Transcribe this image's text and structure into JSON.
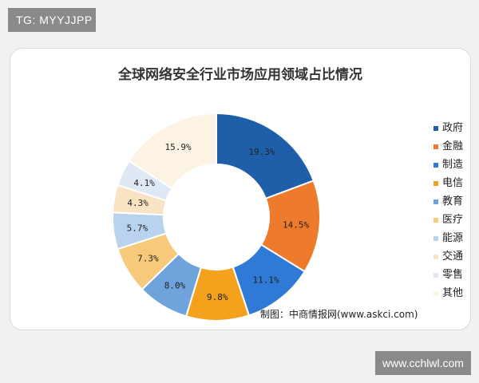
{
  "overlay": {
    "tg_label": "TG: MYYJJPP",
    "site_label": "www.cchlwl.com"
  },
  "chart_data": {
    "type": "pie",
    "donut": true,
    "title": "全球网络安全行业市场应用领域占比情况",
    "source": "制图：中商情报网(www.askci.com)",
    "legend_position": "right",
    "slices": [
      {
        "label": "政府",
        "value": 19.3,
        "value_label": "19.3%",
        "color": "#1f5fa9"
      },
      {
        "label": "金融",
        "value": 14.5,
        "value_label": "14.5%",
        "color": "#ee7a2c"
      },
      {
        "label": "制造",
        "value": 11.1,
        "value_label": "11.1%",
        "color": "#2f7ad6"
      },
      {
        "label": "电信",
        "value": 9.8,
        "value_label": "9.8%",
        "color": "#f4a21d"
      },
      {
        "label": "教育",
        "value": 8.0,
        "value_label": "8.0%",
        "color": "#6fa3db"
      },
      {
        "label": "医疗",
        "value": 7.3,
        "value_label": "7.3%",
        "color": "#f7c97a"
      },
      {
        "label": "能源",
        "value": 5.7,
        "value_label": "5.7%",
        "color": "#b9d3ef"
      },
      {
        "label": "交通",
        "value": 4.3,
        "value_label": "4.3%",
        "color": "#fae3c2"
      },
      {
        "label": "零售",
        "value": 4.1,
        "value_label": "4.1%",
        "color": "#dfe9f5"
      },
      {
        "label": "其他",
        "value": 15.9,
        "value_label": "15.9%",
        "color": "#fdf3e5"
      }
    ]
  }
}
